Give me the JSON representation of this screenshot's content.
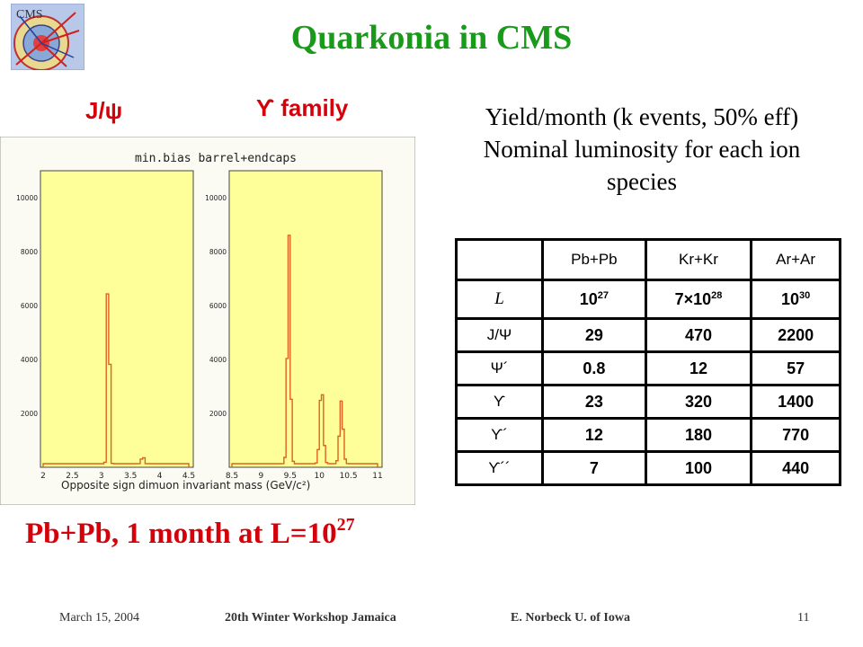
{
  "title": "Quarkonia in CMS",
  "plot_labels": {
    "jpsi": "J/ψ",
    "upsilon": "ϒ family"
  },
  "yield_text": {
    "line1": "Yield/month (k events, 50% eff)",
    "line2": "Nominal luminosity for each ion",
    "line3": "species"
  },
  "plot": {
    "header": "min.bias  barrel+endcaps",
    "xlabel": "Opposite sign dimuon invariant mass  (GeV/c²)",
    "left_yticks": [
      "2000",
      "4000",
      "6000",
      "8000",
      "10000"
    ],
    "right_yticks": [
      "2000",
      "4000",
      "6000",
      "8000",
      "10000"
    ],
    "left_xticks": [
      "2",
      "2.5",
      "3",
      "3.5",
      "4",
      "4.5"
    ],
    "right_xticks": [
      "8.5",
      "9",
      "9.5",
      "10",
      "10.5",
      "11"
    ],
    "colors": {
      "panel_bg": "#ffff99",
      "histogram": "#e06020"
    }
  },
  "table": {
    "columns": [
      "",
      "Pb+Pb",
      "Kr+Kr",
      "Ar+Ar"
    ],
    "luminosity_row": {
      "label": "L",
      "pbpb": "10",
      "pbpb_exp": "27",
      "krkr": "7×10",
      "krkr_exp": "28",
      "arar": "10",
      "arar_exp": "30"
    },
    "rows": [
      {
        "label": "J/Ψ",
        "values": [
          "29",
          "470",
          "2200"
        ]
      },
      {
        "label": "Ψ´",
        "values": [
          "0.8",
          "12",
          "57"
        ]
      },
      {
        "label": "ϒ",
        "values": [
          "23",
          "320",
          "1400"
        ]
      },
      {
        "label": "ϒ´",
        "values": [
          "12",
          "180",
          "770"
        ]
      },
      {
        "label": "ϒ´´",
        "values": [
          "7",
          "100",
          "440"
        ]
      }
    ]
  },
  "bottom_text": {
    "main": "Pb+Pb, 1 month  at L=10",
    "exp": "27"
  },
  "footer": {
    "date": "March 15, 2004",
    "workshop": "20th Winter Workshop  Jamaica",
    "author": "E. Norbeck   U. of Iowa",
    "page": "11"
  }
}
